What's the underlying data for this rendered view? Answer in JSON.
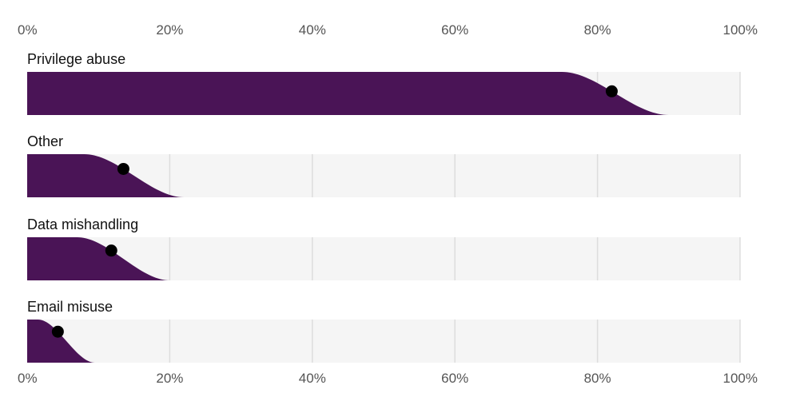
{
  "chart_data": {
    "type": "bar",
    "title": "",
    "xlabel": "",
    "ylabel": "",
    "xlim": [
      0,
      100
    ],
    "x_ticks": [
      "0%",
      "20%",
      "40%",
      "60%",
      "80%",
      "100%"
    ],
    "x_tick_values": [
      0,
      20,
      40,
      60,
      80,
      100
    ],
    "grid": true,
    "categories": [
      "Privilege abuse",
      "Other",
      "Data mishandling",
      "Email misuse"
    ],
    "values": [
      82,
      13.5,
      11.8,
      4.3
    ],
    "distribution_extent": [
      {
        "flat_until": 75,
        "zero_at": 90
      },
      {
        "flat_until": 8,
        "zero_at": 22
      },
      {
        "flat_until": 7,
        "zero_at": 20
      },
      {
        "flat_until": 1.5,
        "zero_at": 9.5
      }
    ],
    "colors": {
      "fill": "#4a1456",
      "track": "#f5f5f5",
      "grid": "#dddddd",
      "dot": "#000000"
    }
  }
}
